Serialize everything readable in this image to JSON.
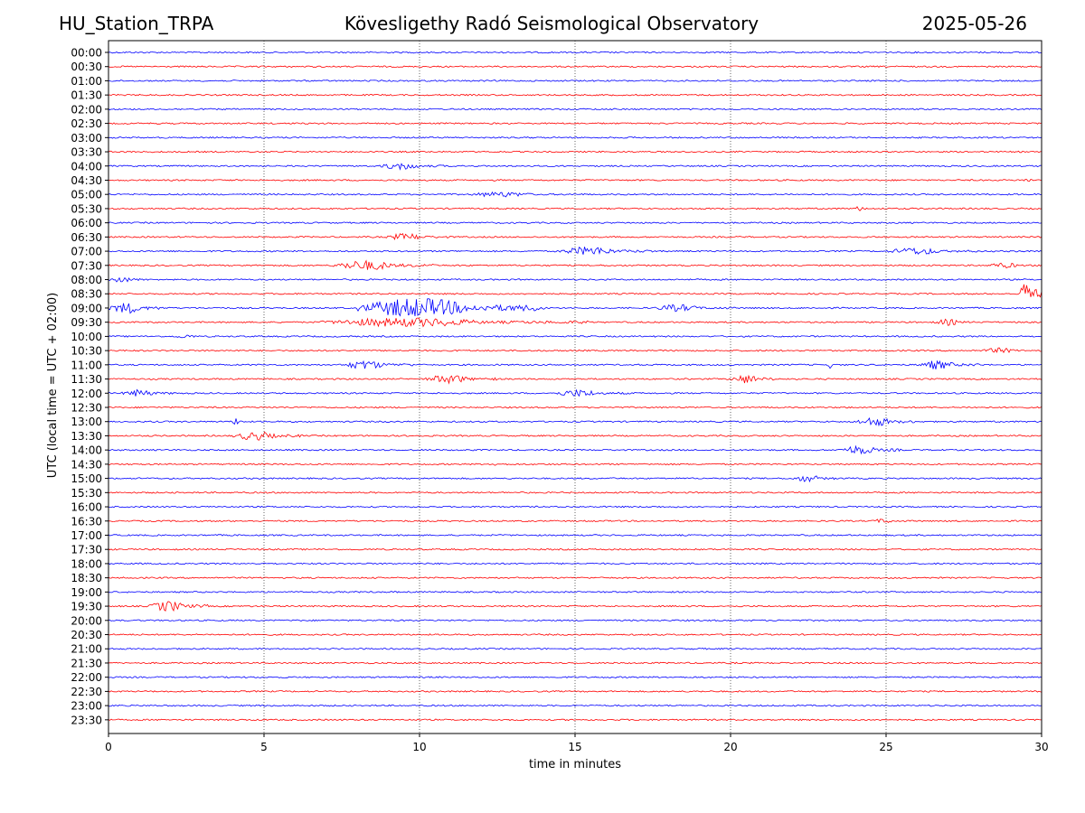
{
  "header": {
    "station": "HU_Station_TRPA",
    "observatory": "Kövesligethy Radó Seismological Observatory",
    "date": "2025-05-26"
  },
  "colors": {
    "even_trace": "#0000ff",
    "odd_trace": "#ff0000",
    "axes": "#000000",
    "grid": "#000000"
  },
  "chart_data": {
    "type": "line",
    "title": "",
    "xlabel": "time in minutes",
    "ylabel": "UTC (local time = UTC + 02:00)",
    "xlim": [
      0,
      30
    ],
    "x_ticks": [
      0,
      5,
      10,
      15,
      20,
      25,
      30
    ],
    "x_tick_labels": [
      "0",
      "5",
      "10",
      "15",
      "20",
      "25",
      "30"
    ],
    "grid": "vertical dotted at x ticks",
    "legend": "none",
    "rows": [
      "00:00",
      "00:30",
      "01:00",
      "01:30",
      "02:00",
      "02:30",
      "03:00",
      "03:30",
      "04:00",
      "04:30",
      "05:00",
      "05:30",
      "06:00",
      "06:30",
      "07:00",
      "07:30",
      "08:00",
      "08:30",
      "09:00",
      "09:30",
      "10:00",
      "10:30",
      "11:00",
      "11:30",
      "12:00",
      "12:30",
      "13:00",
      "13:30",
      "14:00",
      "14:30",
      "15:00",
      "15:30",
      "16:00",
      "16:30",
      "17:00",
      "17:30",
      "18:00",
      "18:30",
      "19:00",
      "19:30",
      "20:00",
      "20:30",
      "21:00",
      "21:30",
      "22:00",
      "22:30",
      "23:00",
      "23:30"
    ],
    "bursts": [
      {
        "row": "04:00",
        "start": 8.7,
        "end": 10.9,
        "amp": 4
      },
      {
        "row": "04:30",
        "start": 29.3,
        "end": 30.0,
        "amp": 2
      },
      {
        "row": "05:00",
        "start": 11.5,
        "end": 15.0,
        "amp": 3
      },
      {
        "row": "05:30",
        "start": 23.8,
        "end": 24.8,
        "amp": 2.5
      },
      {
        "row": "06:30",
        "start": 8.9,
        "end": 11.0,
        "amp": 4
      },
      {
        "row": "07:00",
        "start": 14.5,
        "end": 17.5,
        "amp": 5
      },
      {
        "row": "07:00",
        "start": 25.0,
        "end": 28.0,
        "amp": 4
      },
      {
        "row": "07:30",
        "start": 7.2,
        "end": 10.5,
        "amp": 5.5
      },
      {
        "row": "07:30",
        "start": 28.2,
        "end": 30.0,
        "amp": 3
      },
      {
        "row": "08:00",
        "start": 0.0,
        "end": 1.2,
        "amp": 4
      },
      {
        "row": "08:30",
        "start": 29.3,
        "end": 30.0,
        "amp": 16
      },
      {
        "row": "09:00",
        "start": 0.0,
        "end": 1.8,
        "amp": 6
      },
      {
        "row": "09:00",
        "start": 8.0,
        "end": 14.0,
        "amp": 11
      },
      {
        "row": "09:00",
        "start": 17.5,
        "end": 20.0,
        "amp": 4
      },
      {
        "row": "09:30",
        "start": 6.8,
        "end": 15.5,
        "amp": 5
      },
      {
        "row": "09:30",
        "start": 26.5,
        "end": 28.0,
        "amp": 3.5
      },
      {
        "row": "10:00",
        "start": 2.0,
        "end": 3.5,
        "amp": 2
      },
      {
        "row": "10:30",
        "start": 28.0,
        "end": 30.0,
        "amp": 3
      },
      {
        "row": "11:00",
        "start": 7.5,
        "end": 9.8,
        "amp": 5
      },
      {
        "row": "11:00",
        "start": 26.0,
        "end": 28.0,
        "amp": 5
      },
      {
        "row": "11:00",
        "start": 23.1,
        "end": 23.4,
        "amp": 4
      },
      {
        "row": "11:30",
        "start": 10.2,
        "end": 12.5,
        "amp": 5
      },
      {
        "row": "11:30",
        "start": 20.0,
        "end": 21.5,
        "amp": 5
      },
      {
        "row": "12:00",
        "start": 0.4,
        "end": 2.2,
        "amp": 4
      },
      {
        "row": "12:00",
        "start": 14.3,
        "end": 16.8,
        "amp": 4
      },
      {
        "row": "13:00",
        "start": 4.0,
        "end": 4.3,
        "amp": 6
      },
      {
        "row": "13:00",
        "start": 24.0,
        "end": 26.0,
        "amp": 5
      },
      {
        "row": "13:30",
        "start": 4.0,
        "end": 6.3,
        "amp": 5
      },
      {
        "row": "14:00",
        "start": 23.5,
        "end": 25.5,
        "amp": 5
      },
      {
        "row": "14:30",
        "start": 12.3,
        "end": 12.6,
        "amp": 3
      },
      {
        "row": "15:00",
        "start": 22.0,
        "end": 23.5,
        "amp": 4
      },
      {
        "row": "16:30",
        "start": 24.5,
        "end": 25.8,
        "amp": 2.5
      },
      {
        "row": "19:30",
        "start": 1.3,
        "end": 3.2,
        "amp": 6
      }
    ]
  }
}
